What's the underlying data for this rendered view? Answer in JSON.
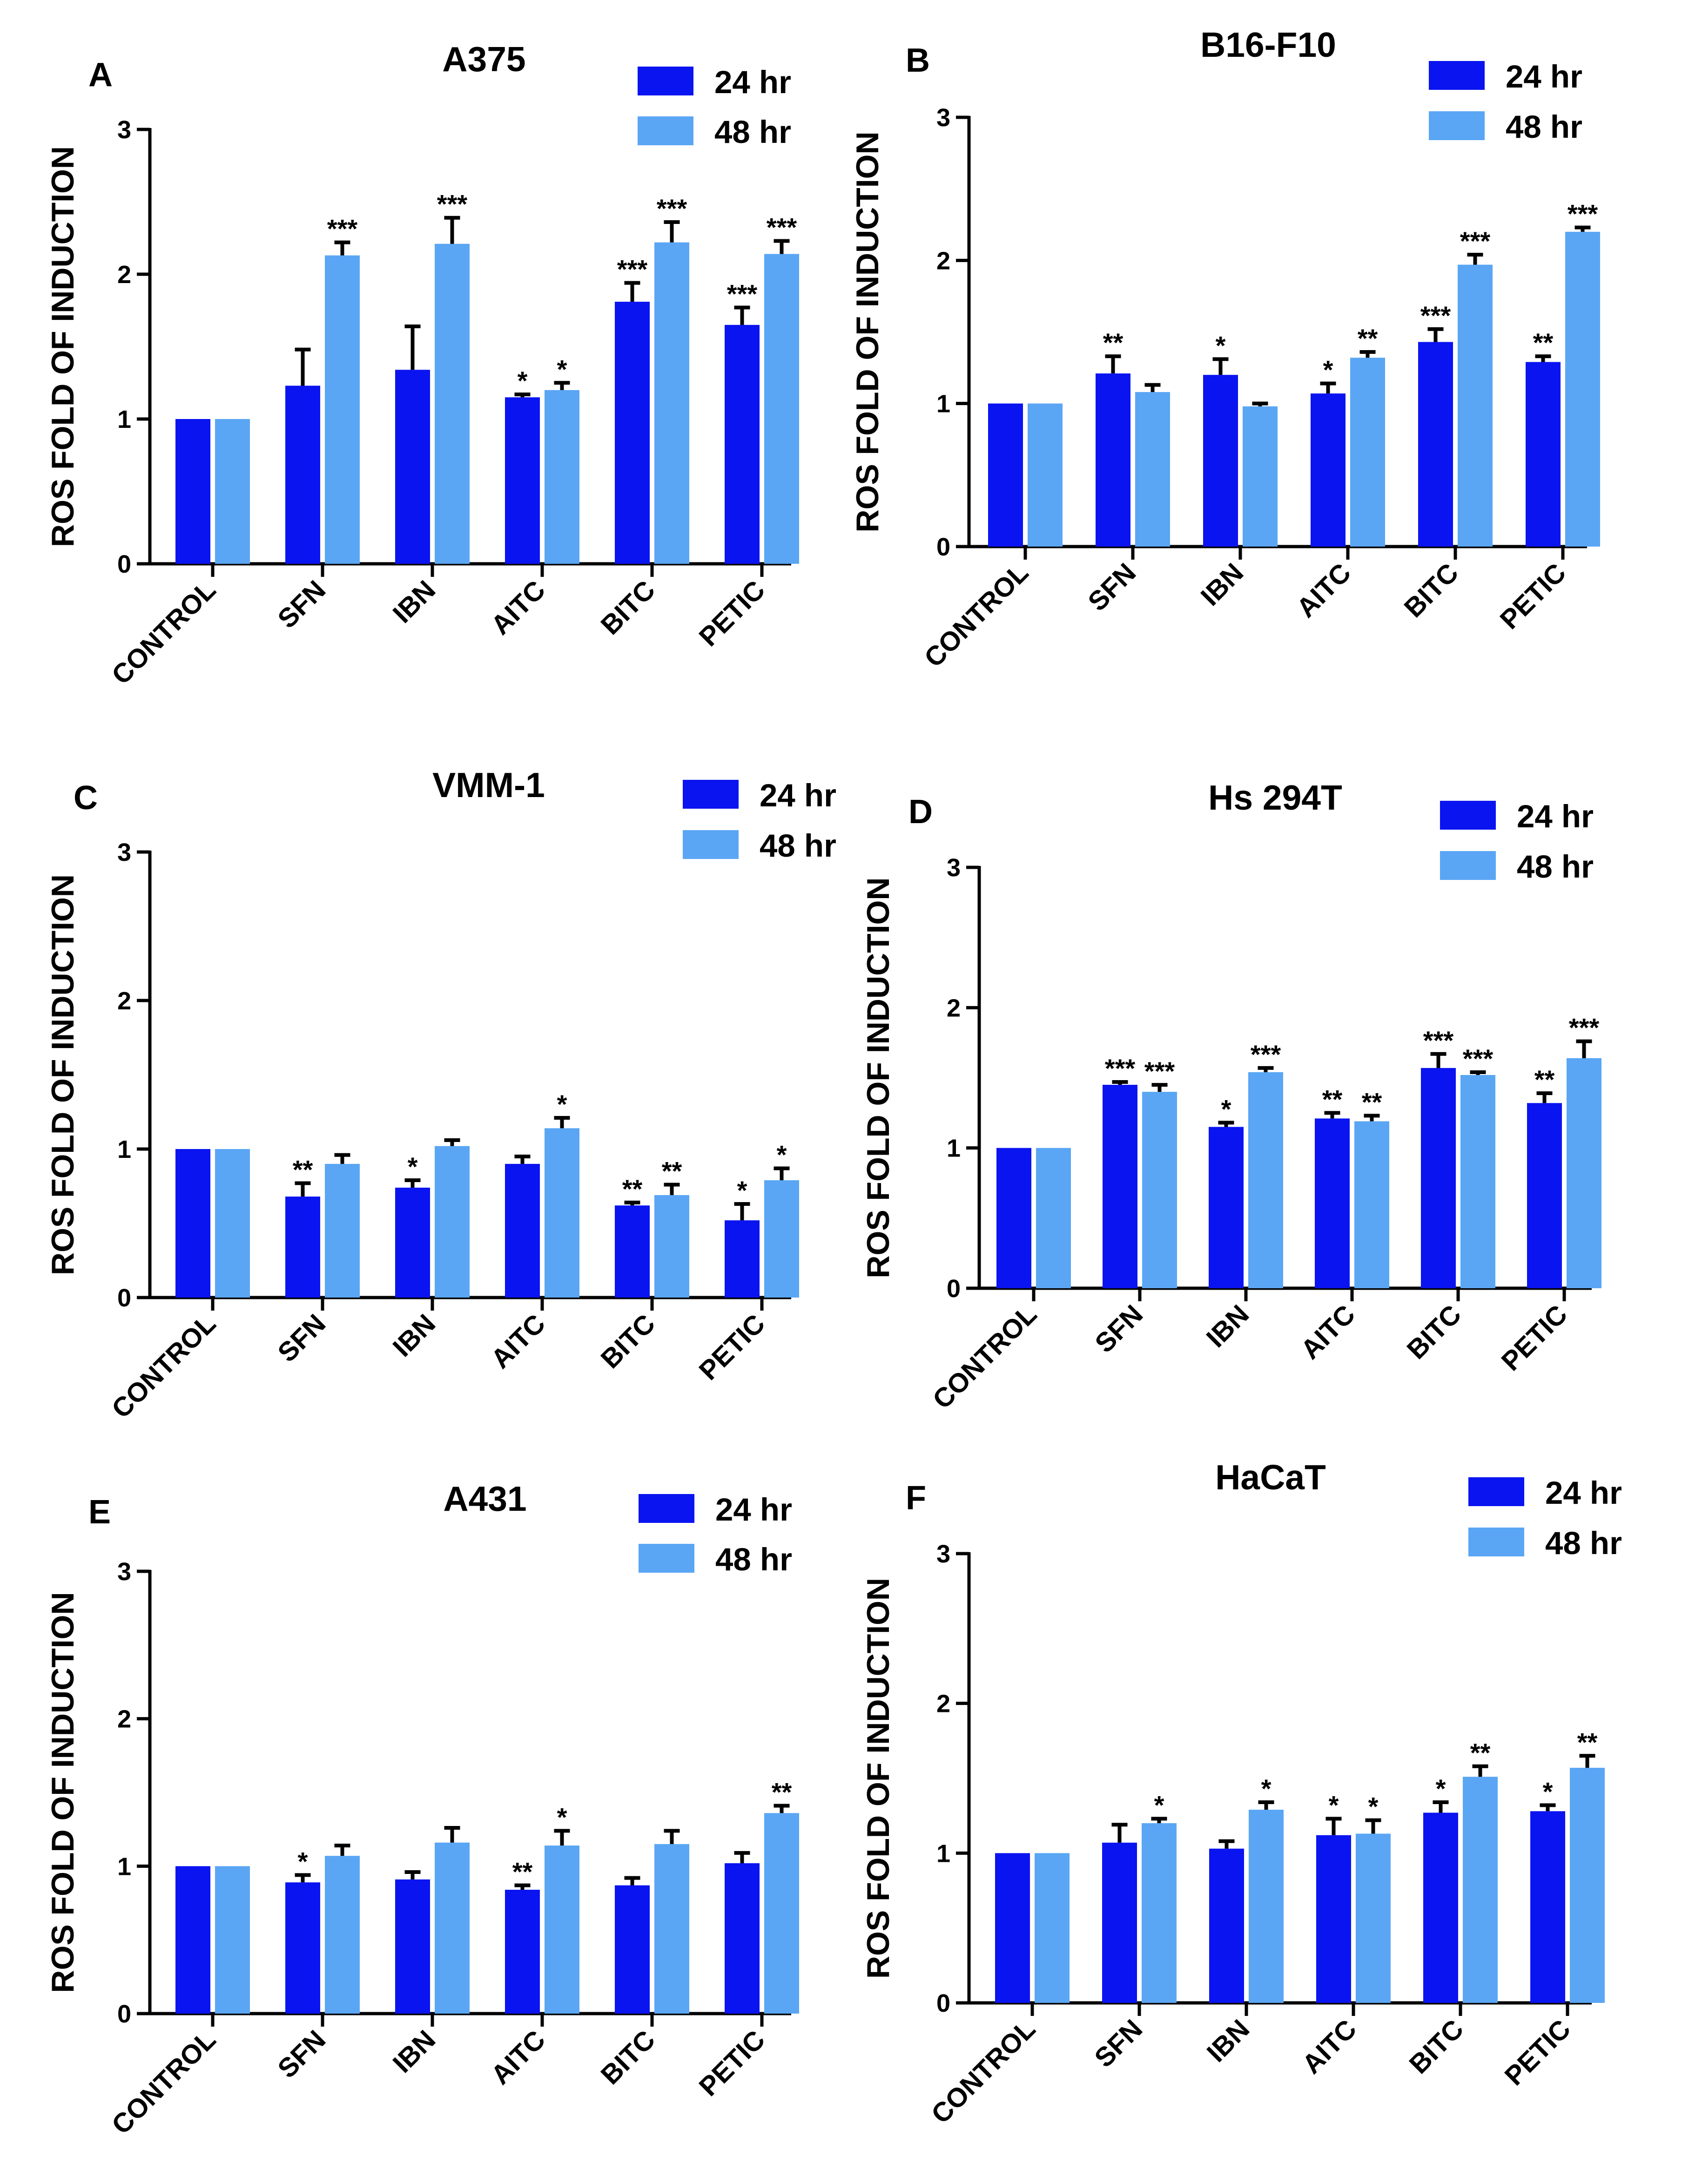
{
  "colors": {
    "hr24": "#0a14f0",
    "hr48": "#5aa6f4"
  },
  "chart_data": [
    {
      "type": "bar",
      "panel": "A",
      "title": "A375",
      "ylabel": "ROS FOLD OF INDUCTION",
      "ylim": [
        0,
        3
      ],
      "yticks": [
        "0",
        "1",
        "2",
        "3"
      ],
      "categories": [
        "CONTROL",
        "SFN",
        "IBN",
        "AITC",
        "BITC",
        "PETIC"
      ],
      "series": [
        {
          "name": "24 hr",
          "values": [
            1.0,
            1.23,
            1.34,
            1.15,
            1.81,
            1.65
          ],
          "errors": [
            0,
            0.25,
            0.3,
            0.02,
            0.13,
            0.12
          ],
          "sig": [
            "",
            "",
            "",
            "*",
            "***",
            "***"
          ]
        },
        {
          "name": "48 hr",
          "values": [
            1.0,
            2.13,
            2.21,
            1.2,
            2.22,
            2.14
          ],
          "errors": [
            0,
            0.09,
            0.18,
            0.05,
            0.14,
            0.09
          ],
          "sig": [
            "",
            "***",
            "***",
            "*",
            "***",
            "***"
          ]
        }
      ]
    },
    {
      "type": "bar",
      "panel": "B",
      "title": "B16-F10",
      "ylabel": "ROS FOLD OF INDUCTION",
      "ylim": [
        0,
        3
      ],
      "yticks": [
        "0",
        "1",
        "2",
        "3"
      ],
      "categories": [
        "CONTROL",
        "SFN",
        "IBN",
        "AITC",
        "BITC",
        "PETIC"
      ],
      "series": [
        {
          "name": "24 hr",
          "values": [
            1.0,
            1.21,
            1.2,
            1.07,
            1.43,
            1.29
          ],
          "errors": [
            0,
            0.12,
            0.11,
            0.07,
            0.09,
            0.04
          ],
          "sig": [
            "",
            "**",
            "*",
            "*",
            "***",
            "**"
          ]
        },
        {
          "name": "48 hr",
          "values": [
            1.0,
            1.08,
            0.98,
            1.32,
            1.97,
            2.2
          ],
          "errors": [
            0,
            0.05,
            0.02,
            0.04,
            0.07,
            0.03
          ],
          "sig": [
            "",
            "",
            "",
            "**",
            "***",
            "***"
          ]
        }
      ]
    },
    {
      "type": "bar",
      "panel": "C",
      "title": "VMM-1",
      "ylabel": "ROS FOLD OF INDUCTION",
      "ylim": [
        0,
        3
      ],
      "yticks": [
        "0",
        "1",
        "2",
        "3"
      ],
      "categories": [
        "CONTROL",
        "SFN",
        "IBN",
        "AITC",
        "BITC",
        "PETIC"
      ],
      "series": [
        {
          "name": "24 hr",
          "values": [
            1.0,
            0.68,
            0.74,
            0.9,
            0.62,
            0.52
          ],
          "errors": [
            0,
            0.09,
            0.05,
            0.05,
            0.02,
            0.11
          ],
          "sig": [
            "",
            "**",
            "*",
            "",
            "**",
            "*"
          ]
        },
        {
          "name": "48 hr",
          "values": [
            1.0,
            0.9,
            1.02,
            1.14,
            0.69,
            0.79
          ],
          "errors": [
            0,
            0.06,
            0.04,
            0.07,
            0.07,
            0.08
          ],
          "sig": [
            "",
            "",
            "",
            "*",
            "**",
            "*"
          ]
        }
      ]
    },
    {
      "type": "bar",
      "panel": "D",
      "title": "Hs 294T",
      "ylabel": "ROS FOLD OF INDUCTION",
      "ylim": [
        0,
        3
      ],
      "yticks": [
        "0",
        "1",
        "2",
        "3"
      ],
      "categories": [
        "CONTROL",
        "SFN",
        "IBN",
        "AITC",
        "BITC",
        "PETIC"
      ],
      "series": [
        {
          "name": "24 hr",
          "values": [
            1.0,
            1.45,
            1.15,
            1.21,
            1.57,
            1.32
          ],
          "errors": [
            0,
            0.02,
            0.03,
            0.04,
            0.1,
            0.07
          ],
          "sig": [
            "",
            "***",
            "*",
            "**",
            "***",
            "**"
          ]
        },
        {
          "name": "48 hr",
          "values": [
            1.0,
            1.4,
            1.54,
            1.19,
            1.52,
            1.64
          ],
          "errors": [
            0,
            0.05,
            0.03,
            0.04,
            0.02,
            0.12
          ],
          "sig": [
            "",
            "***",
            "***",
            "**",
            "***",
            "***"
          ]
        }
      ]
    },
    {
      "type": "bar",
      "panel": "E",
      "title": "A431",
      "ylabel": "ROS FOLD OF INDUCTION",
      "ylim": [
        0,
        3
      ],
      "yticks": [
        "0",
        "1",
        "2",
        "3"
      ],
      "categories": [
        "CONTROL",
        "SFN",
        "IBN",
        "AITC",
        "BITC",
        "PETIC"
      ],
      "series": [
        {
          "name": "24 hr",
          "values": [
            1.0,
            0.89,
            0.91,
            0.84,
            0.87,
            1.02
          ],
          "errors": [
            0,
            0.05,
            0.05,
            0.03,
            0.05,
            0.07
          ],
          "sig": [
            "",
            "*",
            "",
            "**",
            "",
            ""
          ]
        },
        {
          "name": "48 hr",
          "values": [
            1.0,
            1.07,
            1.16,
            1.14,
            1.15,
            1.36
          ],
          "errors": [
            0,
            0.07,
            0.1,
            0.1,
            0.09,
            0.05
          ],
          "sig": [
            "",
            "",
            "",
            "*",
            "",
            "**"
          ]
        }
      ]
    },
    {
      "type": "bar",
      "panel": "F",
      "title": "HaCaT",
      "ylabel": "ROS FOLD OF INDUCTION",
      "ylim": [
        0,
        3
      ],
      "yticks": [
        "0",
        "1",
        "2",
        "3"
      ],
      "categories": [
        "CONTROL",
        "SFN",
        "IBN",
        "AITC",
        "BITC",
        "PETIC"
      ],
      "series": [
        {
          "name": "24 hr",
          "values": [
            1.0,
            1.07,
            1.03,
            1.12,
            1.27,
            1.28
          ],
          "errors": [
            0,
            0.12,
            0.05,
            0.11,
            0.07,
            0.04
          ],
          "sig": [
            "",
            "",
            "",
            "*",
            "*",
            "*"
          ]
        },
        {
          "name": "48 hr",
          "values": [
            1.0,
            1.2,
            1.29,
            1.13,
            1.51,
            1.57
          ],
          "errors": [
            0,
            0.03,
            0.05,
            0.09,
            0.07,
            0.08
          ],
          "sig": [
            "",
            "*",
            "*",
            "*",
            "**",
            "**"
          ]
        }
      ]
    }
  ]
}
